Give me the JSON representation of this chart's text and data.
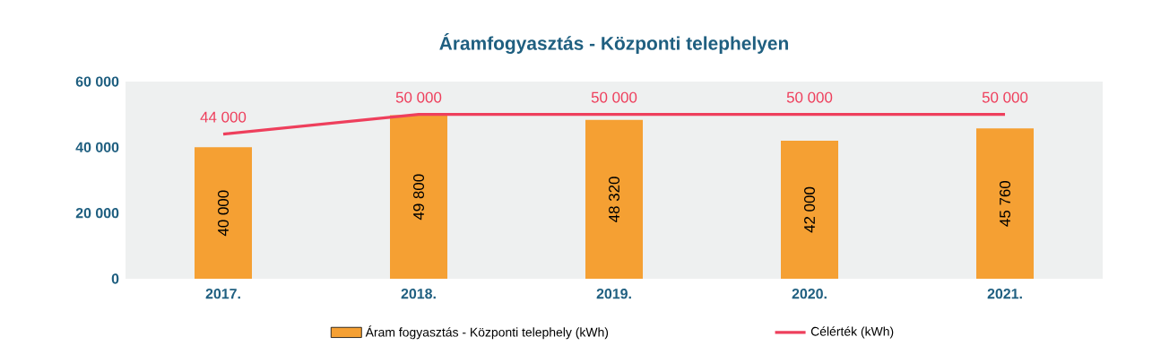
{
  "chart_data": {
    "type": "bar",
    "title": "Áramfogyasztás - Központi telephelyen",
    "categories": [
      "2017.",
      "2018.",
      "2019.",
      "2020.",
      "2021."
    ],
    "series": [
      {
        "name": "Áram fogyasztás - Központi telephely (kWh)",
        "color": "#f5a033",
        "values": [
          40000,
          49800,
          48320,
          42000,
          45760
        ],
        "value_labels": [
          "40 000",
          "49 800",
          "48 320",
          "42 000",
          "45 760"
        ]
      },
      {
        "name": "Célérték (kWh)",
        "type": "line",
        "color": "#ee3f5c",
        "values": [
          44000,
          50000,
          50000,
          50000,
          50000
        ],
        "value_labels": [
          "44 000",
          "50 000",
          "50 000",
          "50 000",
          "50 000"
        ]
      }
    ],
    "ylim": [
      0,
      60000
    ],
    "yticks": [
      {
        "value": 0,
        "label": "0"
      },
      {
        "value": 20000,
        "label": "20 000"
      },
      {
        "value": 40000,
        "label": "40 000"
      },
      {
        "value": 60000,
        "label": "60 000"
      }
    ],
    "legend": "bottom",
    "marker": "none",
    "line_style": "solid"
  }
}
